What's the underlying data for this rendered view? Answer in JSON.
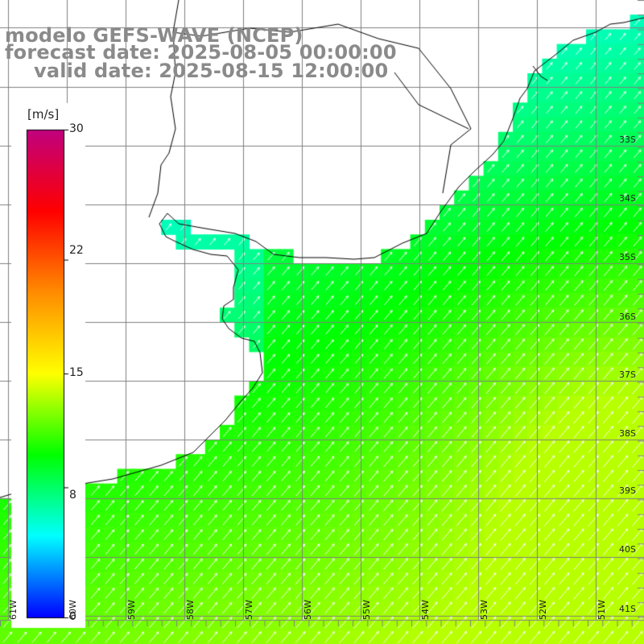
{
  "title": {
    "model": "modelo GEFS-WAVE (NCEP)",
    "forecast": "forecast date: 2025-08-05 00:00:00",
    "valid": "valid date: 2025-08-15 12:00:00"
  },
  "colorbar": {
    "unit": "[m/s]",
    "ticks": [
      "30",
      "22",
      "15",
      "8",
      "0"
    ],
    "range": [
      0,
      30
    ],
    "colors": [
      "#0000ff",
      "#00ffff",
      "#00ff00",
      "#ffff00",
      "#ff8c00",
      "#ff0000",
      "#c00080"
    ]
  },
  "axes": {
    "lat_labels": [
      "33S",
      "34S",
      "35S",
      "36S",
      "37S",
      "38S",
      "39S",
      "40S",
      "41S"
    ],
    "lon_labels": [
      "61W",
      "60W",
      "59W",
      "58W",
      "57W",
      "56W",
      "55W",
      "54W",
      "53W",
      "52W",
      "51W"
    ]
  },
  "colors": {
    "land": "#ffffff",
    "grid": "#808080",
    "coast": "#000000",
    "arrow": "#ffffff"
  },
  "field": {
    "variable": "wind speed",
    "direction": "from southwest toward northeast",
    "speed_range_mps": [
      6,
      14
    ]
  }
}
